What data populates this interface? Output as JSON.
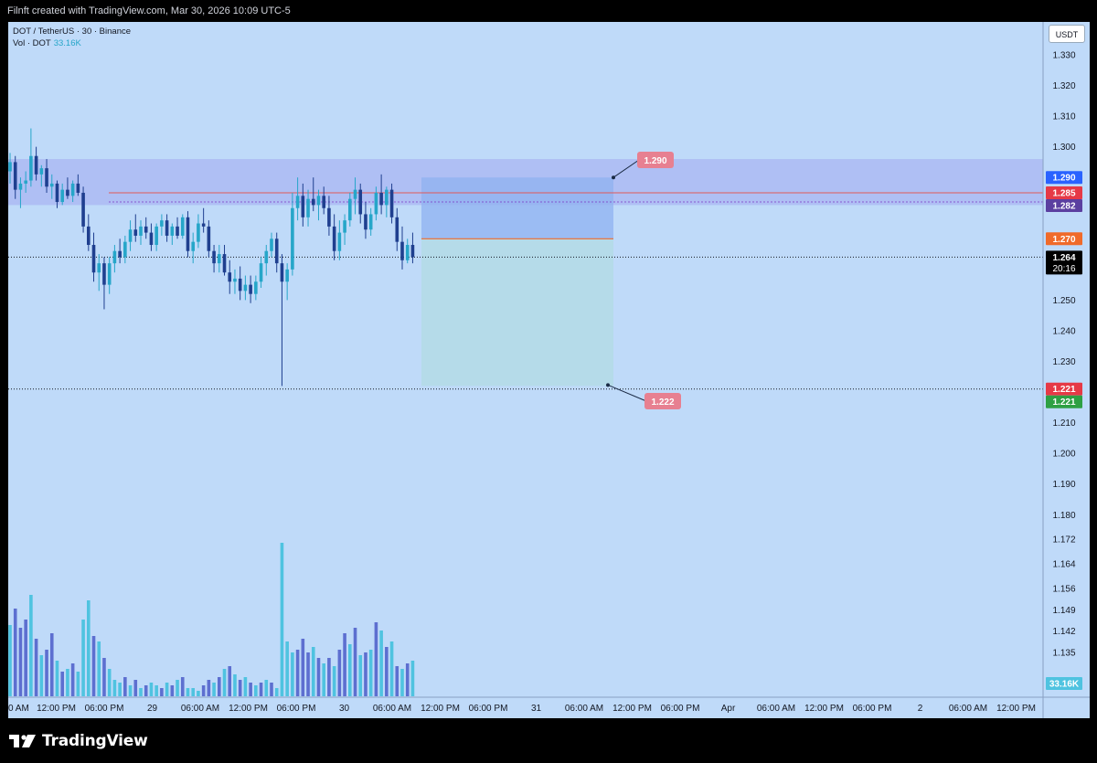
{
  "header": {
    "title": "Filnft created with TradingView.com, Mar 30, 2026 10:09 UTC-5"
  },
  "legend": {
    "symbol": "DOT / TetherUS · 30 · Binance",
    "vol_label": "Vol · DOT",
    "vol_value": "33.16K"
  },
  "currency_button": "USDT",
  "brand": {
    "name": "TradingView"
  },
  "colors": {
    "background": "#bfdaf9",
    "up_candle": "#26a6c9",
    "down_candle": "#1f3f8f",
    "volume_up": "#4fc3e0",
    "volume_down": "#5d6fd0",
    "risk_zone": "#8fb1f0",
    "target_zone": "#b3dbe6",
    "resistance_band": "#a9b5f2",
    "stop_line": "#e05858",
    "entry_line": "#f06a2a"
  },
  "chart_data": {
    "type": "candlestick",
    "y_axis": {
      "ticks": [
        "1.330",
        "1.320",
        "1.310",
        "1.300",
        "1.250",
        "1.240",
        "1.230",
        "1.210",
        "1.200",
        "1.190",
        "1.180",
        "1.172",
        "1.164",
        "1.156",
        "1.149",
        "1.142",
        "1.135"
      ],
      "ylim": [
        1.13,
        1.335
      ]
    },
    "x_axis": {
      "ticks": [
        "0 AM",
        "12:00 PM",
        "06:00 PM",
        "29",
        "06:00 AM",
        "12:00 PM",
        "06:00 PM",
        "30",
        "06:00 AM",
        "12:00 PM",
        "06:00 PM",
        "31",
        "06:00 AM",
        "12:00 PM",
        "06:00 PM",
        "Apr",
        "06:00 AM",
        "12:00 PM",
        "06:00 PM",
        "2",
        "06:00 AM",
        "12:00 PM"
      ]
    },
    "price_labels": [
      {
        "value": "1.290",
        "color": "#2962ff",
        "text_color": "#ffffff",
        "sub": ""
      },
      {
        "value": "1.285",
        "color": "#e63946",
        "text_color": "#ffffff",
        "sub": ""
      },
      {
        "value": "1.282",
        "color": "#5b3fa0",
        "text_color": "#ffffff",
        "sub": ""
      },
      {
        "value": "1.270",
        "color": "#f06a2a",
        "text_color": "#ffffff",
        "sub": ""
      },
      {
        "value": "1.264",
        "color": "#000000",
        "text_color": "#ffffff",
        "sub": "20:16"
      },
      {
        "value": "1.221",
        "color": "#e63946",
        "text_color": "#ffffff",
        "sub": ""
      },
      {
        "value": "1.221",
        "color": "#2ea043",
        "text_color": "#ffffff",
        "sub": ""
      },
      {
        "value": "33.16K",
        "color": "#4fc3e0",
        "text_color": "#ffffff",
        "sub": ""
      }
    ],
    "annotations": [
      {
        "text": "1.290",
        "value": 1.29
      },
      {
        "text": "1.222",
        "value": 1.222
      }
    ],
    "resistance_zone": [
      1.281,
      1.296
    ],
    "position": {
      "stop": 1.29,
      "entry": 1.27,
      "target": 1.222
    },
    "last_price": 1.264,
    "support_dotted": 1.221,
    "candles": [
      [
        1.292,
        1.298,
        1.288,
        1.295
      ],
      [
        1.295,
        1.297,
        1.283,
        1.286
      ],
      [
        1.286,
        1.29,
        1.28,
        1.288
      ],
      [
        1.288,
        1.292,
        1.285,
        1.289
      ],
      [
        1.289,
        1.306,
        1.287,
        1.297
      ],
      [
        1.297,
        1.3,
        1.289,
        1.291
      ],
      [
        1.291,
        1.294,
        1.287,
        1.293
      ],
      [
        1.293,
        1.296,
        1.285,
        1.287
      ],
      [
        1.287,
        1.291,
        1.283,
        1.288
      ],
      [
        1.288,
        1.289,
        1.28,
        1.282
      ],
      [
        1.282,
        1.288,
        1.281,
        1.286
      ],
      [
        1.286,
        1.29,
        1.283,
        1.284
      ],
      [
        1.284,
        1.289,
        1.282,
        1.288
      ],
      [
        1.288,
        1.291,
        1.284,
        1.285
      ],
      [
        1.285,
        1.287,
        1.272,
        1.274
      ],
      [
        1.274,
        1.278,
        1.266,
        1.268
      ],
      [
        1.268,
        1.272,
        1.256,
        1.259
      ],
      [
        1.259,
        1.265,
        1.253,
        1.262
      ],
      [
        1.262,
        1.264,
        1.247,
        1.255
      ],
      [
        1.255,
        1.264,
        1.252,
        1.262
      ],
      [
        1.262,
        1.268,
        1.259,
        1.266
      ],
      [
        1.266,
        1.27,
        1.262,
        1.264
      ],
      [
        1.264,
        1.271,
        1.262,
        1.269
      ],
      [
        1.269,
        1.276,
        1.266,
        1.273
      ],
      [
        1.273,
        1.278,
        1.269,
        1.271
      ],
      [
        1.271,
        1.276,
        1.268,
        1.274
      ],
      [
        1.274,
        1.277,
        1.27,
        1.272
      ],
      [
        1.272,
        1.275,
        1.266,
        1.268
      ],
      [
        1.268,
        1.275,
        1.266,
        1.274
      ],
      [
        1.274,
        1.278,
        1.271,
        1.276
      ],
      [
        1.276,
        1.278,
        1.269,
        1.271
      ],
      [
        1.271,
        1.275,
        1.268,
        1.274
      ],
      [
        1.274,
        1.277,
        1.27,
        1.271
      ],
      [
        1.271,
        1.278,
        1.27,
        1.277
      ],
      [
        1.277,
        1.279,
        1.264,
        1.266
      ],
      [
        1.266,
        1.272,
        1.262,
        1.269
      ],
      [
        1.269,
        1.278,
        1.267,
        1.275
      ],
      [
        1.275,
        1.28,
        1.272,
        1.274
      ],
      [
        1.274,
        1.276,
        1.264,
        1.266
      ],
      [
        1.266,
        1.268,
        1.259,
        1.262
      ],
      [
        1.262,
        1.268,
        1.259,
        1.265
      ],
      [
        1.265,
        1.268,
        1.258,
        1.259
      ],
      [
        1.259,
        1.263,
        1.252,
        1.256
      ],
      [
        1.256,
        1.26,
        1.252,
        1.257
      ],
      [
        1.257,
        1.261,
        1.25,
        1.253
      ],
      [
        1.253,
        1.258,
        1.25,
        1.255
      ],
      [
        1.255,
        1.258,
        1.249,
        1.252
      ],
      [
        1.252,
        1.258,
        1.25,
        1.256
      ],
      [
        1.256,
        1.264,
        1.254,
        1.262
      ],
      [
        1.262,
        1.268,
        1.258,
        1.266
      ],
      [
        1.266,
        1.272,
        1.264,
        1.27
      ],
      [
        1.27,
        1.272,
        1.259,
        1.262
      ],
      [
        1.262,
        1.265,
        1.222,
        1.256
      ],
      [
        1.256,
        1.262,
        1.25,
        1.26
      ],
      [
        1.26,
        1.285,
        1.258,
        1.28
      ],
      [
        1.28,
        1.29,
        1.276,
        1.284
      ],
      [
        1.284,
        1.288,
        1.274,
        1.277
      ],
      [
        1.277,
        1.286,
        1.274,
        1.283
      ],
      [
        1.283,
        1.29,
        1.279,
        1.281
      ],
      [
        1.281,
        1.286,
        1.276,
        1.284
      ],
      [
        1.284,
        1.287,
        1.278,
        1.28
      ],
      [
        1.28,
        1.284,
        1.271,
        1.274
      ],
      [
        1.274,
        1.278,
        1.263,
        1.266
      ],
      [
        1.266,
        1.276,
        1.263,
        1.272
      ],
      [
        1.272,
        1.278,
        1.268,
        1.276
      ],
      [
        1.276,
        1.285,
        1.274,
        1.283
      ],
      [
        1.283,
        1.29,
        1.278,
        1.286
      ],
      [
        1.286,
        1.288,
        1.275,
        1.278
      ],
      [
        1.278,
        1.282,
        1.27,
        1.273
      ],
      [
        1.273,
        1.28,
        1.271,
        1.278
      ],
      [
        1.278,
        1.287,
        1.276,
        1.285
      ],
      [
        1.285,
        1.291,
        1.278,
        1.281
      ],
      [
        1.281,
        1.287,
        1.277,
        1.286
      ],
      [
        1.286,
        1.288,
        1.275,
        1.277
      ],
      [
        1.277,
        1.28,
        1.266,
        1.269
      ],
      [
        1.269,
        1.274,
        1.26,
        1.263
      ],
      [
        1.263,
        1.27,
        1.262,
        1.268
      ],
      [
        1.268,
        1.272,
        1.262,
        1.264
      ]
    ],
    "volumes": [
      [
        26,
        1
      ],
      [
        32,
        0
      ],
      [
        25,
        0
      ],
      [
        28,
        0
      ],
      [
        37,
        1
      ],
      [
        21,
        0
      ],
      [
        15,
        1
      ],
      [
        17,
        0
      ],
      [
        23,
        0
      ],
      [
        13,
        1
      ],
      [
        9,
        0
      ],
      [
        10,
        1
      ],
      [
        12,
        0
      ],
      [
        9,
        1
      ],
      [
        28,
        1
      ],
      [
        35,
        1
      ],
      [
        22,
        0
      ],
      [
        20,
        1
      ],
      [
        14,
        0
      ],
      [
        10,
        1
      ],
      [
        6,
        1
      ],
      [
        5,
        1
      ],
      [
        7,
        0
      ],
      [
        4,
        1
      ],
      [
        6,
        0
      ],
      [
        3,
        1
      ],
      [
        4,
        0
      ],
      [
        5,
        1
      ],
      [
        4,
        1
      ],
      [
        3,
        0
      ],
      [
        5,
        1
      ],
      [
        4,
        0
      ],
      [
        6,
        1
      ],
      [
        7,
        0
      ],
      [
        3,
        1
      ],
      [
        3,
        1
      ],
      [
        2,
        1
      ],
      [
        4,
        0
      ],
      [
        6,
        0
      ],
      [
        5,
        1
      ],
      [
        7,
        0
      ],
      [
        10,
        1
      ],
      [
        11,
        0
      ],
      [
        8,
        1
      ],
      [
        6,
        0
      ],
      [
        7,
        1
      ],
      [
        5,
        0
      ],
      [
        4,
        1
      ],
      [
        5,
        0
      ],
      [
        6,
        1
      ],
      [
        5,
        0
      ],
      [
        3,
        1
      ],
      [
        56,
        1
      ],
      [
        20,
        1
      ],
      [
        16,
        1
      ],
      [
        17,
        0
      ],
      [
        21,
        0
      ],
      [
        16,
        0
      ],
      [
        18,
        1
      ],
      [
        14,
        0
      ],
      [
        12,
        1
      ],
      [
        14,
        0
      ],
      [
        11,
        1
      ],
      [
        17,
        0
      ],
      [
        23,
        0
      ],
      [
        19,
        1
      ],
      [
        25,
        0
      ],
      [
        15,
        1
      ],
      [
        16,
        0
      ],
      [
        17,
        1
      ],
      [
        27,
        0
      ],
      [
        24,
        1
      ],
      [
        18,
        0
      ],
      [
        20,
        1
      ],
      [
        11,
        0
      ],
      [
        10,
        1
      ],
      [
        12,
        0
      ],
      [
        13,
        1
      ]
    ]
  }
}
